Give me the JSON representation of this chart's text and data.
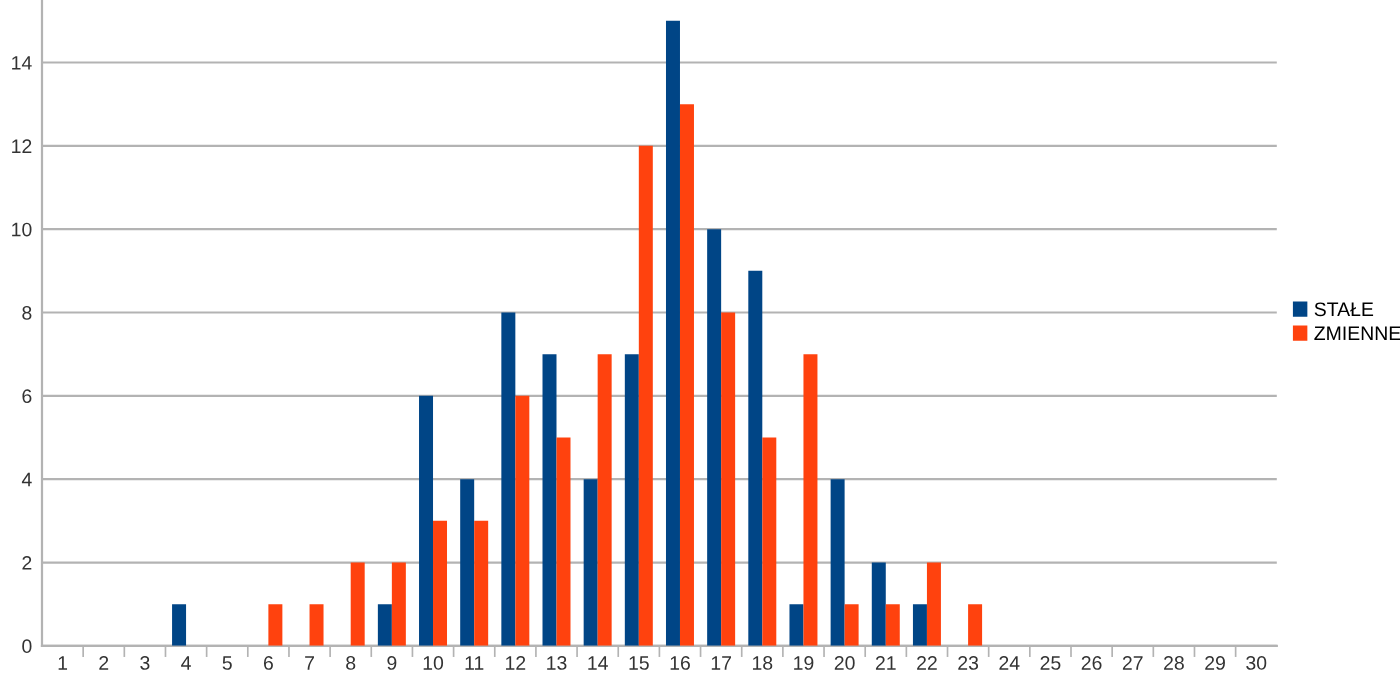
{
  "chart_data": {
    "type": "bar",
    "categories": [
      "1",
      "2",
      "3",
      "4",
      "5",
      "6",
      "7",
      "8",
      "9",
      "10",
      "11",
      "12",
      "13",
      "14",
      "15",
      "16",
      "17",
      "18",
      "19",
      "20",
      "21",
      "22",
      "23",
      "24",
      "25",
      "26",
      "27",
      "28",
      "29",
      "30"
    ],
    "series": [
      {
        "name": "STAŁE",
        "color": "#004586",
        "values": [
          0,
          0,
          0,
          1,
          0,
          0,
          0,
          0,
          1,
          6,
          4,
          8,
          7,
          4,
          7,
          15,
          10,
          9,
          1,
          4,
          2,
          1,
          0,
          0,
          0,
          0,
          0,
          0,
          0,
          0
        ]
      },
      {
        "name": "ZMIENNE",
        "color": "#ff420e",
        "values": [
          0,
          0,
          0,
          0,
          0,
          1,
          1,
          2,
          2,
          3,
          3,
          6,
          5,
          7,
          12,
          13,
          8,
          5,
          7,
          1,
          1,
          2,
          1,
          0,
          0,
          0,
          0,
          0,
          0,
          0
        ]
      }
    ],
    "ylim": [
      0,
      15.5
    ],
    "yticks": [
      0,
      2,
      4,
      6,
      8,
      10,
      12,
      14
    ],
    "grid": "y",
    "legend": "right"
  }
}
